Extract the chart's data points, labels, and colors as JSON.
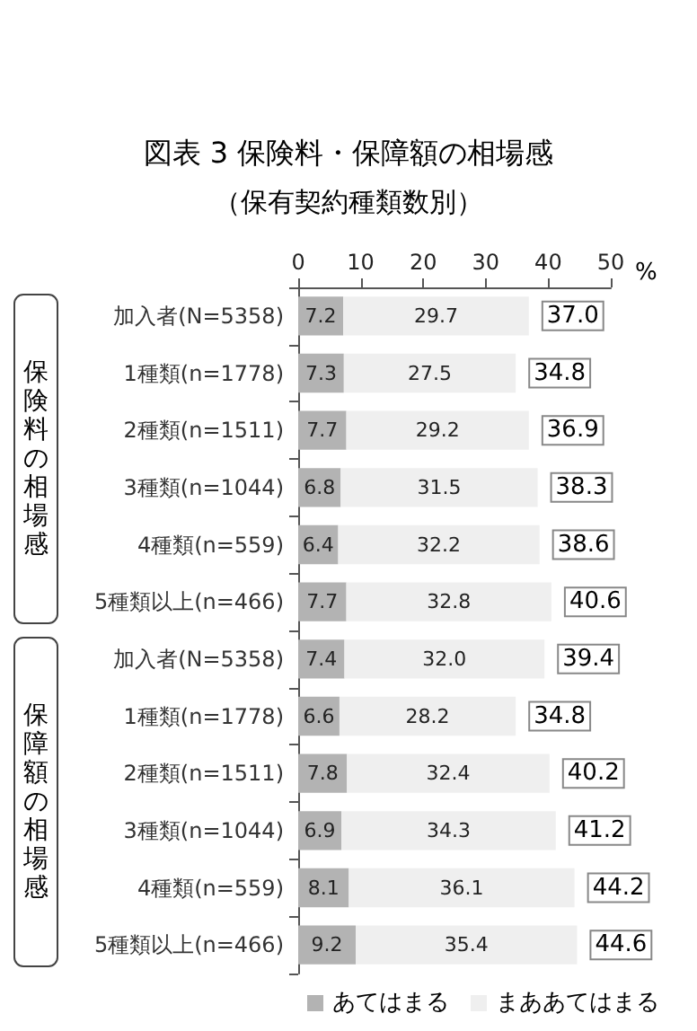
{
  "chart_data": {
    "type": "bar",
    "orientation": "horizontal",
    "stacked": true,
    "title": "図表 3 保険料・保障額の相場感",
    "subtitle": "（保有契約種類数別）",
    "xlabel": "%",
    "categories": [
      "加入者(N=5358)",
      "1種類(n=1778)",
      "2種類(n=1511)",
      "3種類(n=1044)",
      "4種類(n=559)",
      "5種類以上(n=466)",
      "加入者(N=5358)",
      "1種類(n=1778)",
      "2種類(n=1511)",
      "3種類(n=1044)",
      "4種類(n=559)",
      "5種類以上(n=466)"
    ],
    "series": [
      {
        "name": "あてはまる",
        "color": "#b3b3b3",
        "values": [
          7.2,
          7.3,
          7.7,
          6.8,
          6.4,
          7.7,
          7.4,
          6.6,
          7.8,
          6.9,
          8.1,
          9.2
        ],
        "value_labels": [
          "7.2",
          "7.3",
          "7.7",
          "6.8",
          "6.4",
          "7.7",
          "7.4",
          "6.6",
          "7.8",
          "6.9",
          "8.1",
          "9.2"
        ]
      },
      {
        "name": "まああてはまる",
        "color": "#efefef",
        "values": [
          29.7,
          27.5,
          29.2,
          31.5,
          32.2,
          32.8,
          32.0,
          28.2,
          32.4,
          34.3,
          36.1,
          35.4
        ],
        "value_labels": [
          "29.7",
          "27.5",
          "29.2",
          "31.5",
          "32.2",
          "32.8",
          "32.0",
          "28.2",
          "32.4",
          "34.3",
          "36.1",
          "35.4"
        ]
      }
    ],
    "totals": [
      "37.0",
      "34.8",
      "36.9",
      "38.3",
      "38.6",
      "40.6",
      "39.4",
      "34.8",
      "40.2",
      "41.2",
      "44.2",
      "44.6"
    ],
    "xlim": [
      0,
      50
    ],
    "xticks": [
      0,
      10,
      20,
      30,
      40,
      50
    ],
    "grid": false,
    "legend": "bottom",
    "annotations": [
      "保険料の相場感",
      "保障額の相場感"
    ]
  }
}
